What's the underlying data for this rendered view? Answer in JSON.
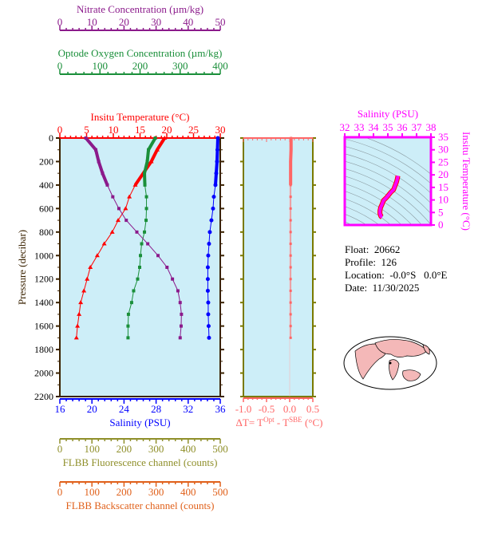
{
  "chart_data": [
    {
      "type": "line",
      "ylabel": "Pressure (decibar)",
      "ylim": [
        2200,
        0
      ],
      "yticks": [
        0,
        200,
        400,
        600,
        800,
        1000,
        1200,
        1400,
        1600,
        1800,
        2000,
        2200
      ],
      "pressure": [
        0,
        100,
        200,
        300,
        400,
        500,
        600,
        700,
        800,
        900,
        1000,
        1100,
        1200,
        1300,
        1400,
        1500,
        1600,
        1700
      ],
      "axes": [
        {
          "key": "temperature",
          "title": "Insitu Temperature (°C)",
          "range": [
            0,
            30
          ],
          "ticks": [
            0,
            5,
            10,
            15,
            20,
            25,
            30
          ],
          "color": "#ff0000",
          "position": "top",
          "marker": "triangle"
        },
        {
          "key": "salinity",
          "title": "Salinity (PSU)",
          "range": [
            16,
            36
          ],
          "ticks": [
            16,
            20,
            24,
            28,
            32,
            36
          ],
          "color": "#0000ff",
          "position": "bottom",
          "marker": "circle"
        },
        {
          "key": "oxygen",
          "title": "Optode Oxygen Concentration (µm/kg)",
          "range": [
            0,
            400
          ],
          "ticks": [
            0,
            100,
            200,
            300,
            400
          ],
          "color": "#1a8f3a",
          "position": "top",
          "marker": "square"
        },
        {
          "key": "nitrate",
          "title": "Nitrate Concentration (µm/kg)",
          "range": [
            0,
            50
          ],
          "ticks": [
            0,
            10,
            20,
            30,
            40,
            50
          ],
          "color": "#8b1a8b",
          "position": "top",
          "marker": "square"
        },
        {
          "key": "fluorescence",
          "title": "FLBB Fluorescence channel (counts)",
          "range": [
            0,
            500
          ],
          "ticks": [
            0,
            100,
            200,
            300,
            400,
            500
          ],
          "color": "#8f8f2a",
          "position": "bottom"
        },
        {
          "key": "backscatter",
          "title": "FLBB Backscatter channel (counts)",
          "range": [
            0,
            500
          ],
          "ticks": [
            0,
            100,
            200,
            300,
            400,
            500
          ],
          "color": "#e0601a",
          "position": "bottom"
        }
      ],
      "series": {
        "temperature": [
          19.6,
          18.2,
          17.1,
          15.6,
          14.1,
          13.0,
          12.3,
          10.9,
          9.8,
          8.3,
          7.0,
          5.7,
          5.1,
          4.5,
          3.9,
          3.6,
          3.3,
          3.1
        ],
        "salinity": [
          35.7,
          35.65,
          35.6,
          35.5,
          35.4,
          35.2,
          35.1,
          34.9,
          34.7,
          34.6,
          34.5,
          34.45,
          34.45,
          34.45,
          34.5,
          34.5,
          34.55,
          34.6
        ],
        "oxygen": [
          238,
          221,
          218,
          211,
          212,
          216,
          216,
          215,
          211,
          204,
          201,
          199,
          194,
          184,
          179,
          171,
          170,
          170
        ],
        "nitrate": [
          8.1,
          11.2,
          12.1,
          13.3,
          14.8,
          16.5,
          18.4,
          20.7,
          24.0,
          27.4,
          30.6,
          33.4,
          35.1,
          36.8,
          37.5,
          37.9,
          37.8,
          37.5
        ]
      }
    },
    {
      "type": "line",
      "xlabel": "ΔT= T",
      "xlabel_sup1": "Opt",
      "xlabel_mid": " - T",
      "xlabel_sup2": "SBE",
      "xlabel_end": " (°C)",
      "xlim": [
        -1.0,
        0.5
      ],
      "xticks": [
        "-1.0",
        "-0.5",
        "0.0",
        "0.5"
      ],
      "color": "#ff6666",
      "values": [
        0.03,
        0.03,
        0.02,
        0.02,
        0.02,
        0.02,
        0.02,
        0.02,
        0.02,
        0.02,
        0.02,
        0.02,
        0.02,
        0.02,
        0.02,
        0.02,
        0.02,
        0.02
      ]
    },
    {
      "type": "scatter",
      "title": "Salinity (PSU)",
      "ylabel": "Insitu Temperature (°C)",
      "xlim": [
        32,
        38
      ],
      "ylim": [
        0,
        35
      ],
      "xticks": [
        32,
        33,
        34,
        35,
        36,
        37,
        38
      ],
      "yticks": [
        0,
        5,
        10,
        15,
        20,
        25,
        30,
        35
      ],
      "color": "#ff00ff"
    }
  ],
  "info": {
    "float": "Float:  20662",
    "profile": "Profile:  126",
    "location": "Location:  -0.0°S   0.0°E",
    "date": "Date:  11/30/2025"
  }
}
